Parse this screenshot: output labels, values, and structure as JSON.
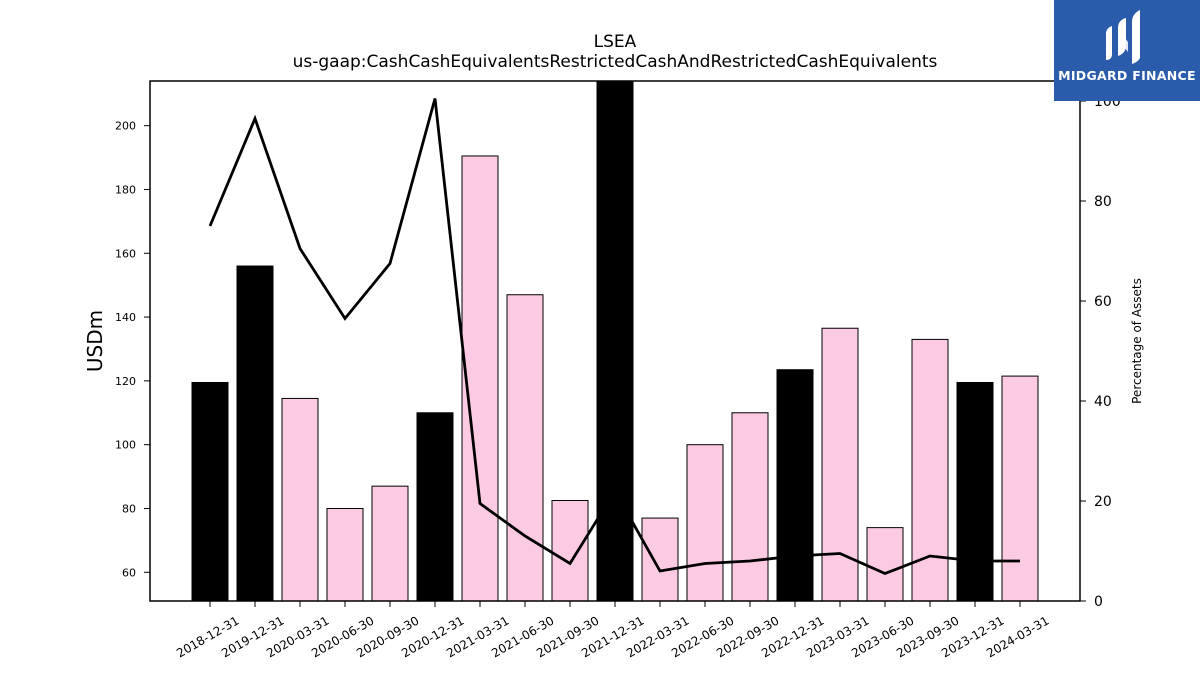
{
  "chart_data": {
    "type": "bar",
    "title": "LSEA",
    "subtitle": "us-gaap:CashCashEquivalentsRestrictedCashAndRestrictedCashEquivalents",
    "ylabel": "USDm",
    "y2label": "Percentage of Assets",
    "ylim": [
      51,
      214
    ],
    "y2lim": [
      0,
      104
    ],
    "yticks": [
      60,
      80,
      100,
      120,
      140,
      160,
      180,
      200
    ],
    "y2ticks": [
      0,
      20,
      40,
      60,
      80,
      100
    ],
    "categories": [
      "2018-12-31",
      "2019-12-31",
      "2020-03-31",
      "2020-06-30",
      "2020-09-30",
      "2020-12-31",
      "2021-03-31",
      "2021-06-30",
      "2021-09-30",
      "2021-12-31",
      "2022-03-31",
      "2022-06-30",
      "2022-09-30",
      "2022-12-31",
      "2023-03-31",
      "2023-06-30",
      "2023-09-30",
      "2023-12-31",
      "2024-03-31"
    ],
    "series": [
      {
        "type": "bar",
        "values": [
          119.5,
          156,
          114.5,
          80,
          87,
          110,
          190.5,
          147,
          82.5,
          214,
          77,
          100,
          110,
          123.5,
          136.5,
          74,
          133,
          119.5,
          121.5
        ]
      },
      {
        "type": "line",
        "axis": "right",
        "values": [
          75,
          96.5,
          70.5,
          56.5,
          67.5,
          100.5,
          19.5,
          13,
          7.5,
          22,
          6,
          7.5,
          8,
          9,
          9.5,
          5.5,
          9,
          8,
          8
        ]
      }
    ],
    "annual_categories": [
      "2018-12-31",
      "2019-12-31",
      "2020-12-31",
      "2021-12-31",
      "2022-12-31",
      "2023-12-31"
    ],
    "colors": {
      "annual_bar": "#000000",
      "quarter_bar": "#fccbe3",
      "line": "#000000"
    },
    "grid": false
  },
  "logo": {
    "text": "MIDGARD FINANCE",
    "background": "#2a5cab"
  }
}
